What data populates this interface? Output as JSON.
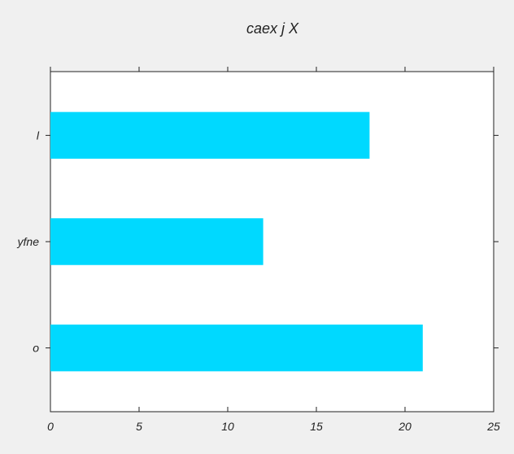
{
  "chart_data": {
    "type": "bar",
    "orientation": "horizontal",
    "title": "caex j  X",
    "categories": [
      "o",
      "yfne",
      "l"
    ],
    "values": [
      21,
      12,
      18
    ],
    "xlim": [
      0,
      25
    ],
    "xticks": [
      "0",
      "5",
      "10",
      "15",
      "20",
      "25"
    ],
    "xlabel": "",
    "ylabel": "",
    "grid": false,
    "bar_color": "#00d9ff",
    "background_color": "#f0f0f0",
    "plot_background_color": "#ffffff"
  }
}
